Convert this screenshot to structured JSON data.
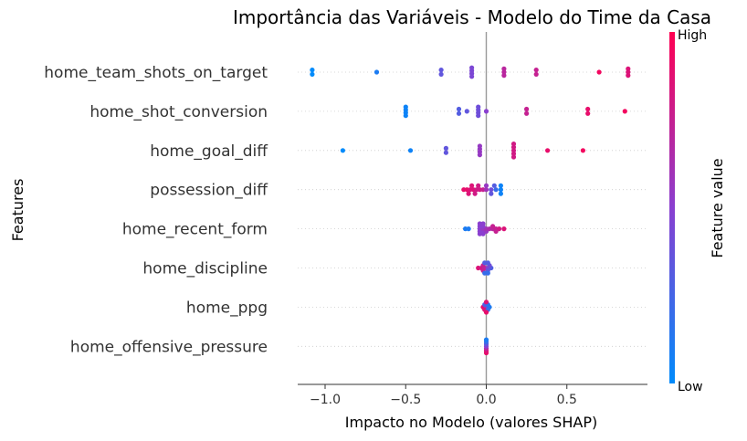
{
  "chart_data": {
    "type": "scatter",
    "title": "Importância das Variáveis - Modelo do Time da Casa",
    "xlabel": "Impacto no Modelo (valores SHAP)",
    "ylabel": "Features",
    "xlim": [
      -1.17,
      1.0
    ],
    "x_ticks": [
      -1.0,
      -0.5,
      0.0,
      0.5
    ],
    "x_tick_labels": [
      "−1.0",
      "−0.5",
      "0.0",
      "0.5"
    ],
    "baseline": 0.0,
    "grid": "dotted horizontal per feature",
    "colorbar": {
      "label": "Feature value",
      "high_label": "High",
      "low_label": "Low",
      "low_color": "#008bfb",
      "high_color": "#ff0052",
      "position": "right"
    },
    "features": [
      {
        "name": "home_team_shots_on_target",
        "points": [
          {
            "x": -1.08,
            "v": 0.0,
            "off": 0.3
          },
          {
            "x": -1.08,
            "v": 0.0,
            "off": -0.3
          },
          {
            "x": -0.68,
            "v": 0.1,
            "off": 0
          },
          {
            "x": -0.28,
            "v": 0.35,
            "off": 0.3
          },
          {
            "x": -0.28,
            "v": 0.35,
            "off": -0.3
          },
          {
            "x": -0.09,
            "v": 0.45,
            "off": 0.6
          },
          {
            "x": -0.09,
            "v": 0.45,
            "off": 0.2
          },
          {
            "x": -0.09,
            "v": 0.45,
            "off": -0.2
          },
          {
            "x": -0.09,
            "v": 0.45,
            "off": -0.6
          },
          {
            "x": 0.11,
            "v": 0.7,
            "off": 0.45
          },
          {
            "x": 0.11,
            "v": 0.7,
            "off": 0
          },
          {
            "x": 0.11,
            "v": 0.7,
            "off": -0.45
          },
          {
            "x": 0.31,
            "v": 0.75,
            "off": 0.3
          },
          {
            "x": 0.31,
            "v": 0.75,
            "off": -0.3
          },
          {
            "x": 0.7,
            "v": 0.95,
            "off": 0
          },
          {
            "x": 0.88,
            "v": 0.85,
            "off": 0.45
          },
          {
            "x": 0.88,
            "v": 0.85,
            "off": 0
          },
          {
            "x": 0.88,
            "v": 0.85,
            "off": -0.45
          }
        ]
      },
      {
        "name": "home_shot_conversion",
        "points": [
          {
            "x": -0.5,
            "v": 0.05,
            "off": 0.6
          },
          {
            "x": -0.5,
            "v": 0.05,
            "off": 0.2
          },
          {
            "x": -0.5,
            "v": 0.05,
            "off": -0.2
          },
          {
            "x": -0.5,
            "v": 0.05,
            "off": -0.6
          },
          {
            "x": -0.17,
            "v": 0.3,
            "off": 0.3
          },
          {
            "x": -0.17,
            "v": 0.3,
            "off": -0.3
          },
          {
            "x": -0.12,
            "v": 0.35,
            "off": 0
          },
          {
            "x": -0.05,
            "v": 0.4,
            "off": 0.6
          },
          {
            "x": -0.05,
            "v": 0.4,
            "off": 0.2
          },
          {
            "x": -0.05,
            "v": 0.4,
            "off": -0.2
          },
          {
            "x": -0.05,
            "v": 0.4,
            "off": -0.6
          },
          {
            "x": 0.0,
            "v": 0.5,
            "off": 0
          },
          {
            "x": 0.25,
            "v": 0.75,
            "off": 0.3
          },
          {
            "x": 0.25,
            "v": 0.75,
            "off": -0.3
          },
          {
            "x": 0.63,
            "v": 0.9,
            "off": 0.3
          },
          {
            "x": 0.63,
            "v": 0.9,
            "off": -0.3
          },
          {
            "x": 0.86,
            "v": 0.95,
            "off": 0
          }
        ]
      },
      {
        "name": "home_goal_diff",
        "points": [
          {
            "x": -0.89,
            "v": 0.0,
            "off": 0
          },
          {
            "x": -0.47,
            "v": 0.05,
            "off": 0
          },
          {
            "x": -0.25,
            "v": 0.35,
            "off": 0.3
          },
          {
            "x": -0.25,
            "v": 0.35,
            "off": -0.3
          },
          {
            "x": -0.04,
            "v": 0.55,
            "off": 0.6
          },
          {
            "x": -0.04,
            "v": 0.55,
            "off": 0.2
          },
          {
            "x": -0.04,
            "v": 0.55,
            "off": -0.2
          },
          {
            "x": -0.04,
            "v": 0.55,
            "off": -0.6
          },
          {
            "x": 0.17,
            "v": 0.8,
            "off": 0.9
          },
          {
            "x": 0.17,
            "v": 0.8,
            "off": 0.45
          },
          {
            "x": 0.17,
            "v": 0.8,
            "off": 0
          },
          {
            "x": 0.17,
            "v": 0.8,
            "off": -0.45
          },
          {
            "x": 0.17,
            "v": 0.8,
            "off": -0.9
          },
          {
            "x": 0.38,
            "v": 0.9,
            "off": 0
          },
          {
            "x": 0.6,
            "v": 0.95,
            "off": 0
          }
        ]
      },
      {
        "name": "possession_diff",
        "points": [
          {
            "x": -0.14,
            "v": 0.9,
            "off": 0
          },
          {
            "x": -0.12,
            "v": 0.9,
            "off": 0
          },
          {
            "x": -0.1,
            "v": 0.85,
            "off": 0
          },
          {
            "x": -0.08,
            "v": 0.85,
            "off": 0
          },
          {
            "x": -0.06,
            "v": 0.8,
            "off": 0
          },
          {
            "x": -0.04,
            "v": 0.8,
            "off": 0
          },
          {
            "x": -0.02,
            "v": 0.75,
            "off": 0
          },
          {
            "x": 0.0,
            "v": 0.6,
            "off": 0
          },
          {
            "x": 0.03,
            "v": 0.4,
            "off": 0
          },
          {
            "x": 0.06,
            "v": 0.2,
            "off": 0
          },
          {
            "x": 0.09,
            "v": 0.05,
            "off": 0
          },
          {
            "x": -0.11,
            "v": 0.85,
            "off": 0.55
          },
          {
            "x": -0.07,
            "v": 0.8,
            "off": 0.55
          },
          {
            "x": 0.03,
            "v": 0.35,
            "off": 0.55
          },
          {
            "x": 0.09,
            "v": 0.05,
            "off": 0.55
          },
          {
            "x": -0.09,
            "v": 0.85,
            "off": -0.55
          },
          {
            "x": -0.05,
            "v": 0.8,
            "off": -0.55
          },
          {
            "x": 0.0,
            "v": 0.55,
            "off": -0.55
          },
          {
            "x": 0.05,
            "v": 0.3,
            "off": -0.55
          },
          {
            "x": 0.09,
            "v": 0.05,
            "off": -0.55
          }
        ]
      },
      {
        "name": "home_recent_form",
        "points": [
          {
            "x": -0.13,
            "v": 0.1,
            "off": 0
          },
          {
            "x": -0.11,
            "v": 0.1,
            "off": 0
          },
          {
            "x": -0.04,
            "v": 0.5,
            "off": 0.7
          },
          {
            "x": -0.02,
            "v": 0.5,
            "off": 0.7
          },
          {
            "x": -0.04,
            "v": 0.5,
            "off": 0.35
          },
          {
            "x": -0.02,
            "v": 0.5,
            "off": 0.35
          },
          {
            "x": 0.0,
            "v": 0.55,
            "off": 0.35
          },
          {
            "x": -0.04,
            "v": 0.5,
            "off": 0
          },
          {
            "x": -0.02,
            "v": 0.55,
            "off": 0
          },
          {
            "x": 0.0,
            "v": 0.6,
            "off": 0
          },
          {
            "x": 0.02,
            "v": 0.65,
            "off": 0
          },
          {
            "x": 0.04,
            "v": 0.7,
            "off": 0
          },
          {
            "x": 0.06,
            "v": 0.75,
            "off": 0
          },
          {
            "x": 0.08,
            "v": 0.8,
            "off": 0
          },
          {
            "x": 0.11,
            "v": 0.85,
            "off": 0
          },
          {
            "x": 0.06,
            "v": 0.75,
            "off": 0.35
          },
          {
            "x": 0.04,
            "v": 0.75,
            "off": -0.35
          },
          {
            "x": -0.04,
            "v": 0.5,
            "off": -0.35
          },
          {
            "x": -0.02,
            "v": 0.5,
            "off": -0.35
          },
          {
            "x": -0.04,
            "v": 0.5,
            "off": -0.7
          },
          {
            "x": -0.02,
            "v": 0.5,
            "off": -0.7
          }
        ]
      },
      {
        "name": "home_discipline",
        "points": [
          {
            "x": -0.05,
            "v": 0.85,
            "off": 0
          },
          {
            "x": -0.03,
            "v": 0.8,
            "off": 0
          },
          {
            "x": -0.01,
            "v": 0.7,
            "off": 0
          },
          {
            "x": 0.01,
            "v": 0.5,
            "off": 0
          },
          {
            "x": 0.03,
            "v": 0.3,
            "off": 0
          },
          {
            "x": -0.02,
            "v": 0.75,
            "off": 0.35
          },
          {
            "x": 0.01,
            "v": 0.35,
            "off": 0.35
          },
          {
            "x": -0.01,
            "v": 0.2,
            "off": 0.7
          },
          {
            "x": 0.01,
            "v": 0.2,
            "off": 0.7
          },
          {
            "x": -0.02,
            "v": 0.75,
            "off": -0.35
          },
          {
            "x": 0.02,
            "v": 0.4,
            "off": -0.35
          },
          {
            "x": -0.01,
            "v": 0.3,
            "off": -0.7
          },
          {
            "x": 0.01,
            "v": 0.3,
            "off": -0.7
          }
        ]
      },
      {
        "name": "home_ppg",
        "points": [
          {
            "x": -0.02,
            "v": 0.9,
            "off": 0
          },
          {
            "x": 0.0,
            "v": 0.5,
            "off": 0
          },
          {
            "x": 0.02,
            "v": 0.1,
            "off": 0
          },
          {
            "x": -0.01,
            "v": 0.85,
            "off": 0.35
          },
          {
            "x": 0.01,
            "v": 0.2,
            "off": 0.35
          },
          {
            "x": 0.0,
            "v": 0.9,
            "off": 0.7
          },
          {
            "x": -0.01,
            "v": 0.3,
            "off": -0.35
          },
          {
            "x": 0.01,
            "v": 0.15,
            "off": -0.35
          },
          {
            "x": 0.0,
            "v": 0.85,
            "off": -0.7
          }
        ]
      },
      {
        "name": "home_offensive_pressure",
        "points": [
          {
            "x": 0.0,
            "v": 0.9,
            "off": 0.9
          },
          {
            "x": 0.0,
            "v": 0.85,
            "off": 0.6
          },
          {
            "x": 0.0,
            "v": 0.7,
            "off": 0.3
          },
          {
            "x": 0.0,
            "v": 0.5,
            "off": 0
          },
          {
            "x": 0.0,
            "v": 0.35,
            "off": -0.3
          },
          {
            "x": 0.0,
            "v": 0.2,
            "off": -0.6
          },
          {
            "x": 0.0,
            "v": 0.1,
            "off": -0.9
          }
        ]
      }
    ]
  }
}
